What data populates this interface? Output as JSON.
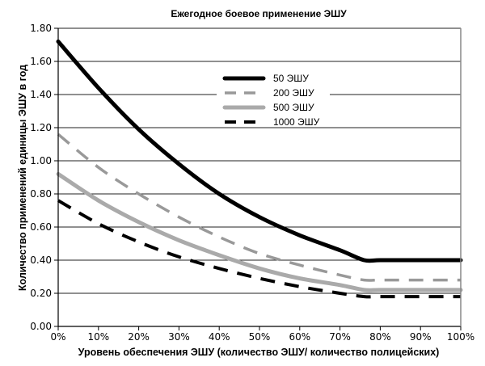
{
  "chart_data": {
    "type": "line",
    "title": "Ежегодное боевое применение ЭШУ",
    "xlabel": "Уровень обеспечения ЭШУ (количество ЭШУ/ количество полицейских)",
    "ylabel": "Количество применений единицы ЭШУ в год",
    "xlim": [
      0,
      100
    ],
    "ylim": [
      0,
      1.8
    ],
    "x_ticks": [
      "0%",
      "10%",
      "20%",
      "30%",
      "40%",
      "50%",
      "60%",
      "70%",
      "80%",
      "90%",
      "100%"
    ],
    "y_ticks": [
      "0.00",
      "0.20",
      "0.40",
      "0.60",
      "0.80",
      "1.00",
      "1.20",
      "1.40",
      "1.60",
      "1.80"
    ],
    "grid": "horizontal",
    "legend_position": "top-center",
    "x": [
      0,
      10,
      20,
      30,
      40,
      50,
      60,
      70,
      76,
      80,
      90,
      100
    ],
    "series": [
      {
        "name": "50 ЭШУ",
        "color": "#000000",
        "style": "solid-thick",
        "values": [
          1.72,
          1.44,
          1.19,
          0.98,
          0.8,
          0.66,
          0.55,
          0.46,
          0.4,
          0.4,
          0.4,
          0.4
        ]
      },
      {
        "name": "200 ЭШУ",
        "color": "#999999",
        "style": "dashed",
        "values": [
          1.16,
          0.96,
          0.8,
          0.66,
          0.54,
          0.44,
          0.37,
          0.31,
          0.28,
          0.28,
          0.28,
          0.28
        ]
      },
      {
        "name": "500 ЭШУ",
        "color": "#aaaaaa",
        "style": "solid-thick",
        "values": [
          0.92,
          0.76,
          0.63,
          0.52,
          0.43,
          0.35,
          0.29,
          0.25,
          0.22,
          0.22,
          0.22,
          0.22
        ]
      },
      {
        "name": "1000 ЭШУ",
        "color": "#000000",
        "style": "dashed",
        "values": [
          0.76,
          0.62,
          0.51,
          0.42,
          0.35,
          0.29,
          0.24,
          0.2,
          0.18,
          0.18,
          0.18,
          0.18
        ]
      }
    ]
  }
}
